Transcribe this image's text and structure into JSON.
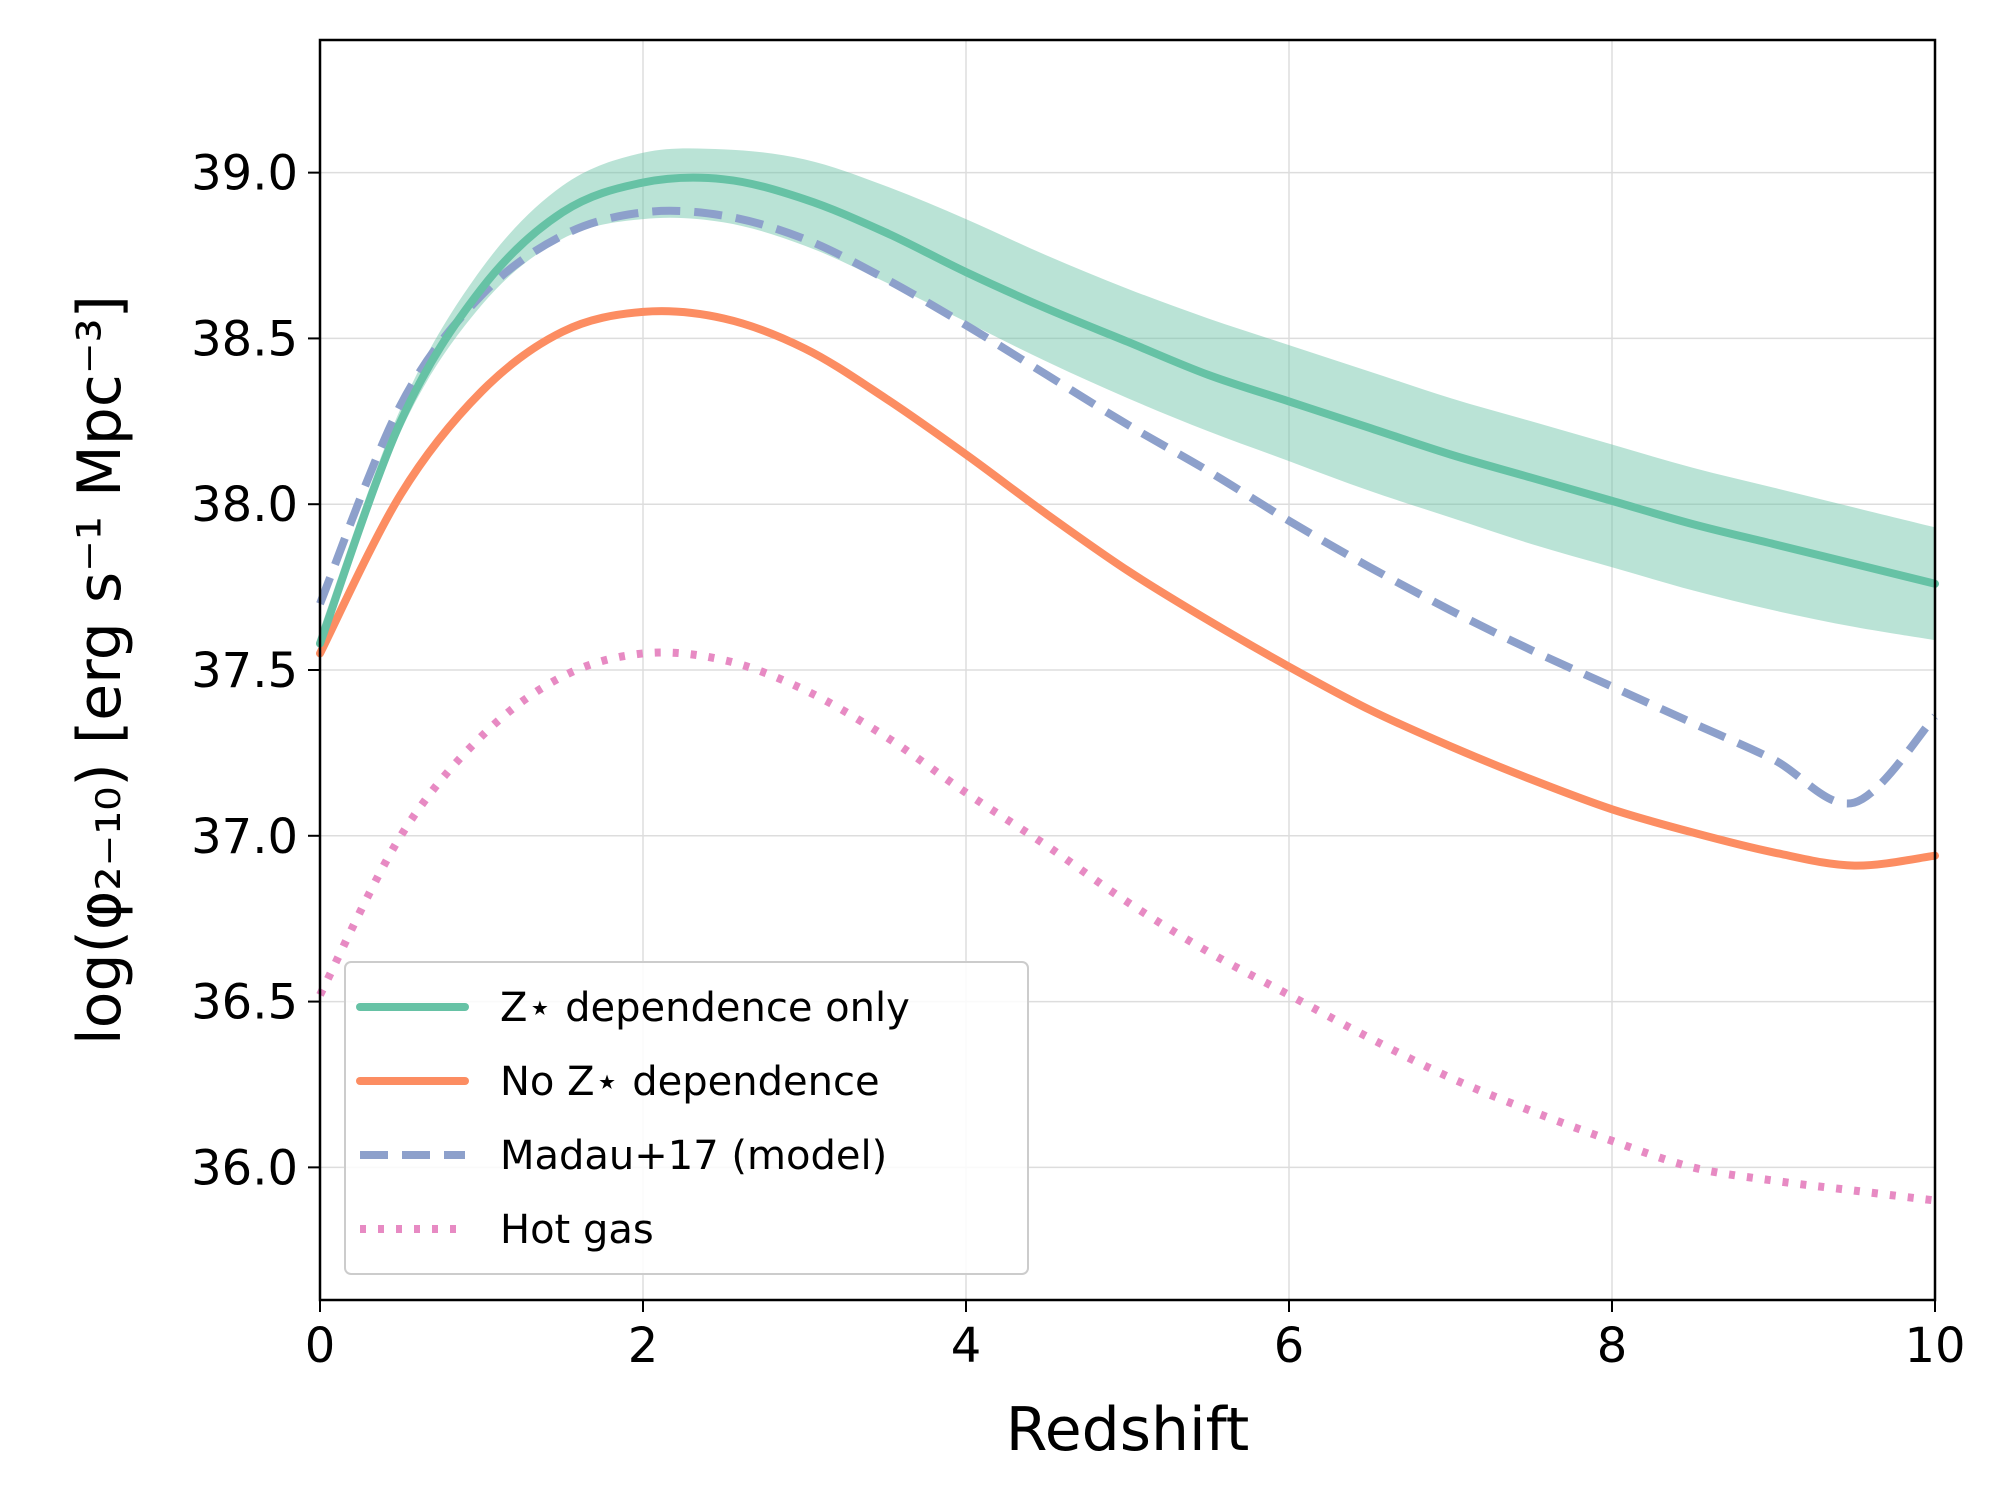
{
  "chart_data": {
    "type": "line",
    "title": "",
    "xlabel": "Redshift",
    "ylabel": "log(φ₂₋₁₀) [erg s⁻¹ Mpc⁻³]",
    "xlim": [
      0,
      10
    ],
    "ylim": [
      35.6,
      39.4
    ],
    "xticks": [
      0,
      2,
      4,
      6,
      8,
      10
    ],
    "xtick_labels": [
      "0",
      "2",
      "4",
      "6",
      "8",
      "10"
    ],
    "yticks": [
      36.0,
      36.5,
      37.0,
      37.5,
      38.0,
      38.5,
      39.0
    ],
    "ytick_labels": [
      "36.0",
      "36.5",
      "37.0",
      "37.5",
      "38.0",
      "38.5",
      "39.0"
    ],
    "grid": true,
    "legend_position": "lower-left",
    "x": [
      0,
      0.5,
      1,
      1.5,
      2,
      2.5,
      3,
      3.5,
      4,
      4.5,
      5,
      5.5,
      6,
      6.5,
      7,
      7.5,
      8,
      8.5,
      9,
      9.5,
      10
    ],
    "series": [
      {
        "name": "Z⋆ dependence only",
        "color": "#66c2a5",
        "style": "solid",
        "values": [
          37.58,
          38.25,
          38.65,
          38.88,
          38.97,
          38.98,
          38.92,
          38.82,
          38.7,
          38.59,
          38.49,
          38.39,
          38.31,
          38.23,
          38.15,
          38.08,
          38.01,
          37.94,
          37.88,
          37.82,
          37.76
        ],
        "band_lower": [
          37.55,
          38.22,
          38.6,
          38.8,
          38.86,
          38.85,
          38.78,
          38.67,
          38.55,
          38.43,
          38.32,
          38.22,
          38.13,
          38.04,
          37.96,
          37.88,
          37.81,
          37.74,
          37.68,
          37.63,
          37.59
        ],
        "band_upper": [
          37.62,
          38.29,
          38.71,
          38.96,
          39.06,
          39.07,
          39.04,
          38.96,
          38.86,
          38.75,
          38.65,
          38.56,
          38.48,
          38.4,
          38.32,
          38.25,
          38.18,
          38.11,
          38.05,
          37.99,
          37.93
        ]
      },
      {
        "name": "No Z⋆ dependence",
        "color": "#fc8d62",
        "style": "solid",
        "values": [
          37.55,
          38.03,
          38.34,
          38.52,
          38.58,
          38.56,
          38.47,
          38.32,
          38.15,
          37.97,
          37.8,
          37.65,
          37.51,
          37.38,
          37.27,
          37.17,
          37.08,
          37.01,
          36.95,
          36.91,
          36.94
        ]
      },
      {
        "name": "Madau+17 (model)",
        "color": "#8da0cb",
        "style": "dashed",
        "values": [
          37.7,
          38.3,
          38.63,
          38.81,
          38.88,
          38.87,
          38.8,
          38.68,
          38.54,
          38.39,
          38.24,
          38.1,
          37.95,
          37.81,
          37.68,
          37.56,
          37.45,
          37.34,
          37.23,
          37.1,
          37.36
        ]
      },
      {
        "name": "Hot gas",
        "color": "#e78ac3",
        "style": "dotted",
        "values": [
          36.52,
          37.0,
          37.3,
          37.48,
          37.55,
          37.53,
          37.44,
          37.3,
          37.13,
          36.97,
          36.8,
          36.65,
          36.52,
          36.39,
          36.27,
          36.17,
          36.08,
          36.0,
          35.96,
          35.93,
          35.9
        ]
      }
    ]
  }
}
